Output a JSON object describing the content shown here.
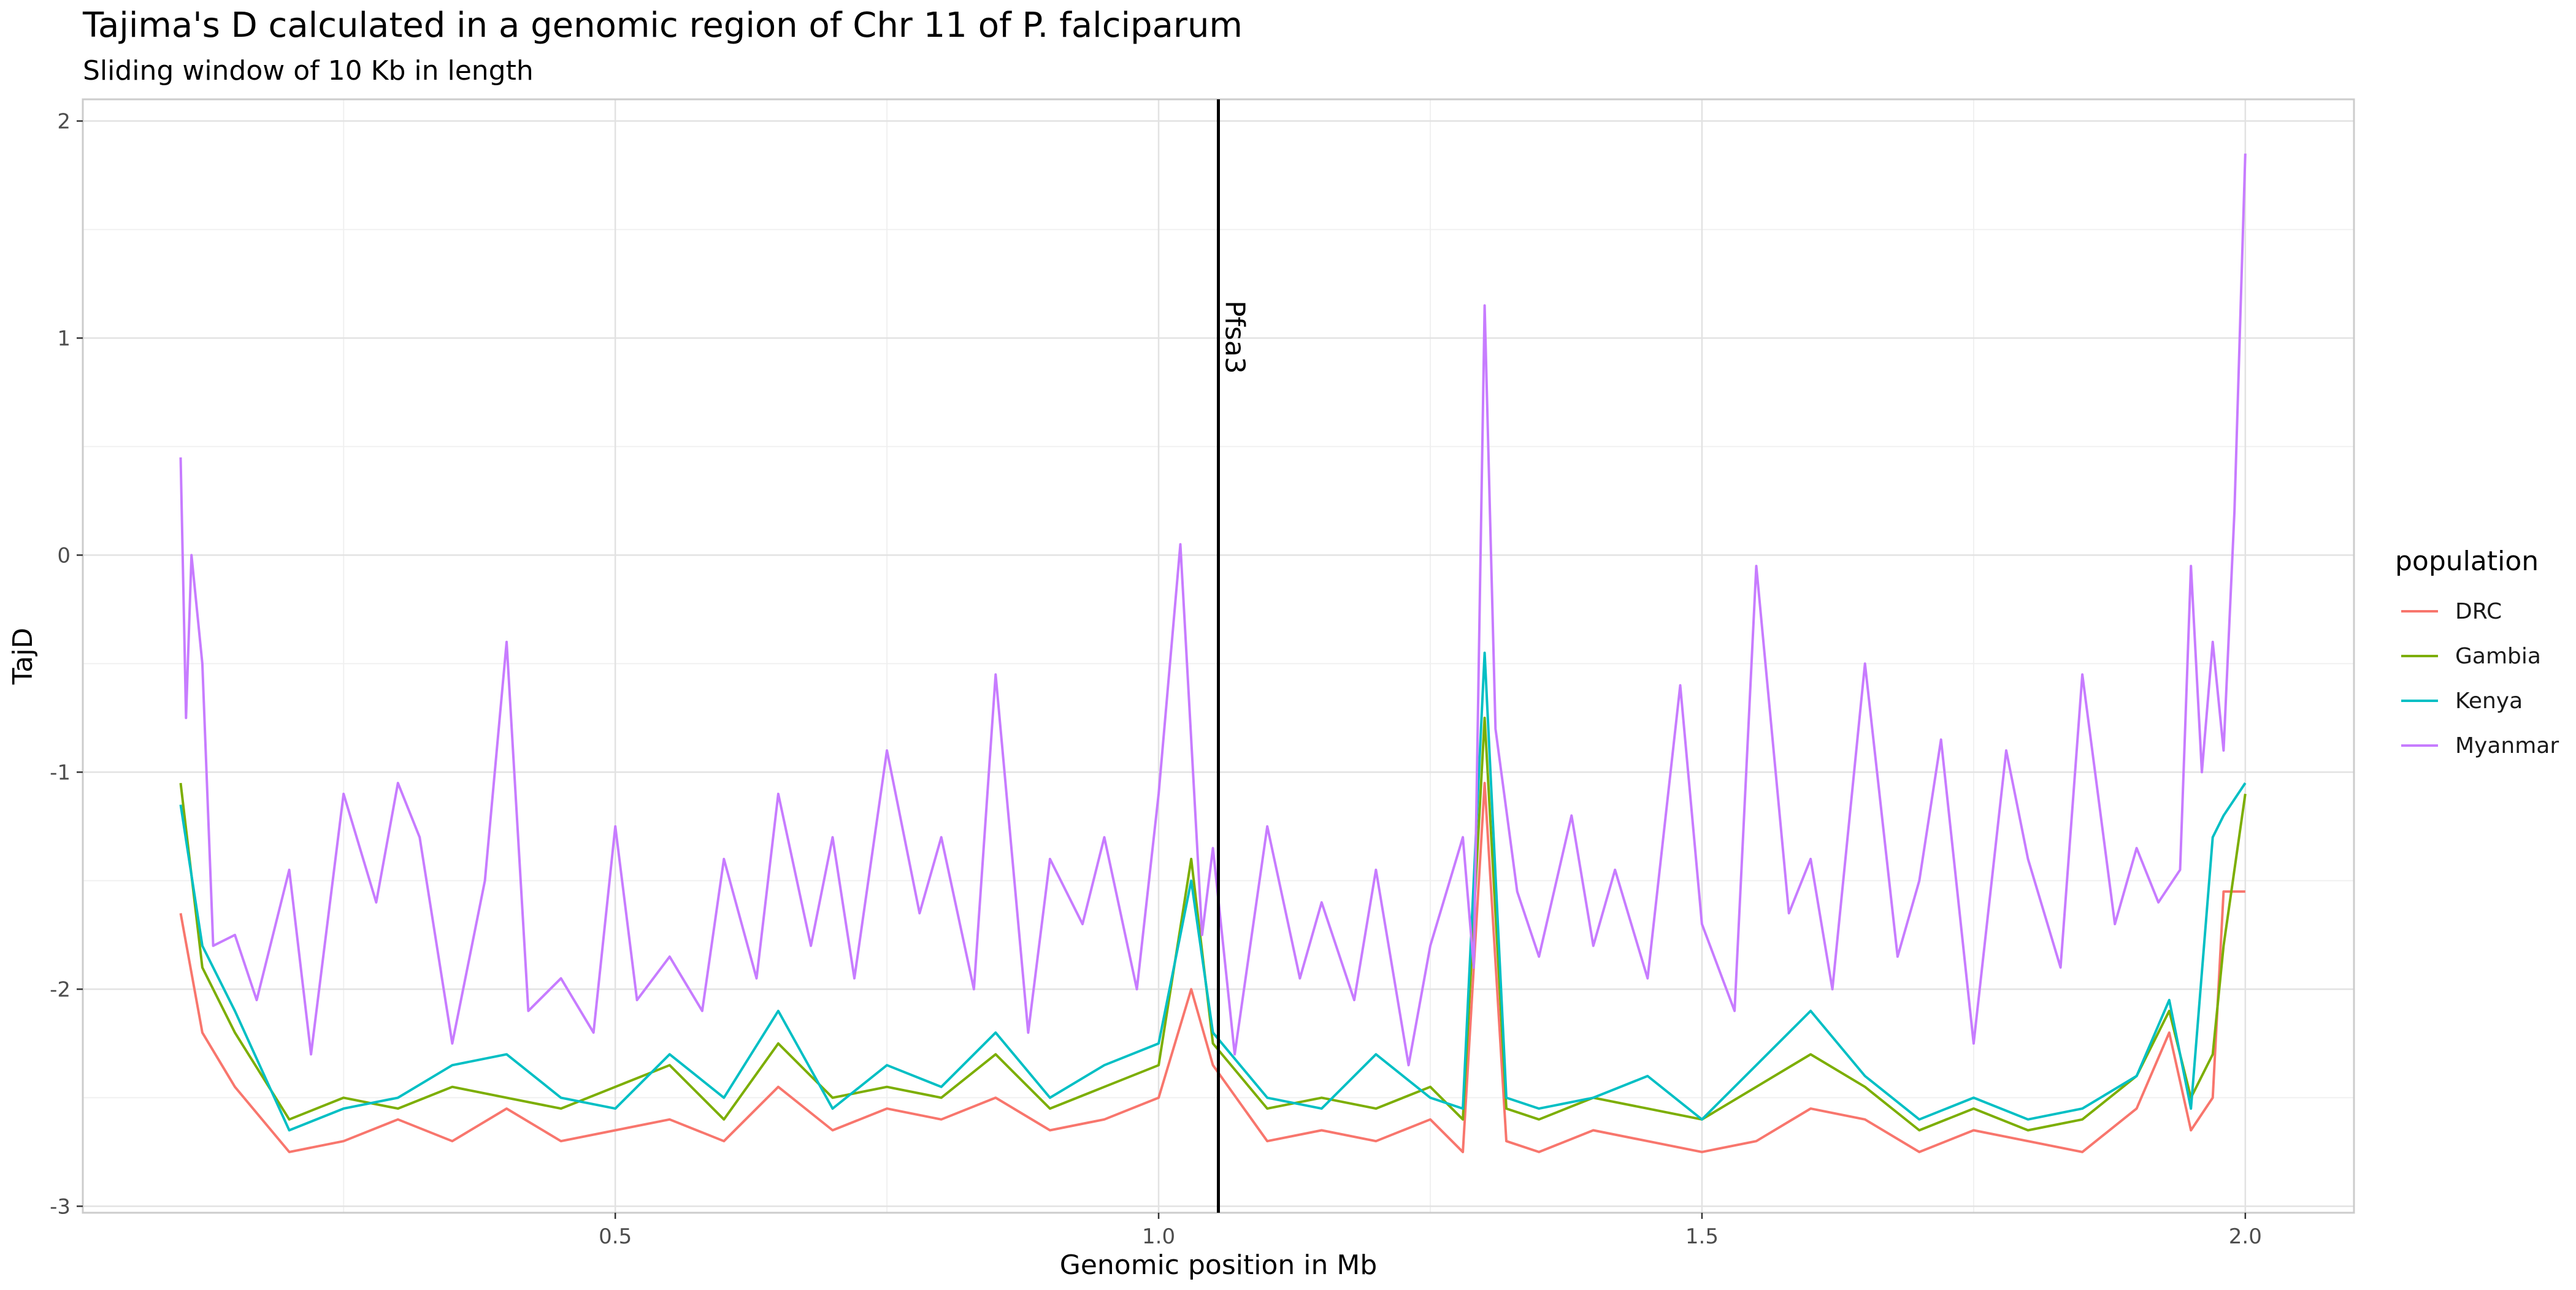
{
  "chart_data": {
    "type": "line",
    "title": "Tajima's D calculated in a genomic region of Chr 11 of P. falciparum",
    "subtitle": "Sliding window of 10 Kb in length",
    "xlabel": "Genomic position in Mb",
    "ylabel": "TajD",
    "xlim": [
      0.01,
      2.1
    ],
    "ylim": [
      -3.03,
      2.1
    ],
    "x_ticks": [
      0.5,
      1.0,
      1.5,
      2.0
    ],
    "x_tick_labels": [
      "0.5",
      "1.0",
      "1.5",
      "2.0"
    ],
    "y_ticks": [
      2,
      1,
      0,
      -1,
      -2,
      -3
    ],
    "y_tick_labels": [
      "2",
      "1",
      "0",
      "-1",
      "-2",
      "-3"
    ],
    "grid": true,
    "legend": {
      "title": "population",
      "position": "right"
    },
    "vline": {
      "x": 1.055,
      "label": "Pfsa3",
      "color": "#000000"
    },
    "series": [
      {
        "name": "DRC",
        "color": "#F8766D",
        "x": [
          0.1,
          0.12,
          0.15,
          0.2,
          0.25,
          0.3,
          0.35,
          0.4,
          0.45,
          0.5,
          0.55,
          0.6,
          0.65,
          0.7,
          0.75,
          0.8,
          0.85,
          0.9,
          0.95,
          1.0,
          1.03,
          1.05,
          1.1,
          1.15,
          1.2,
          1.25,
          1.28,
          1.3,
          1.32,
          1.35,
          1.4,
          1.45,
          1.5,
          1.55,
          1.6,
          1.65,
          1.7,
          1.75,
          1.8,
          1.85,
          1.9,
          1.93,
          1.95,
          1.97,
          1.98,
          2.0
        ],
        "y": [
          -1.65,
          -2.2,
          -2.45,
          -2.75,
          -2.7,
          -2.6,
          -2.7,
          -2.55,
          -2.7,
          -2.65,
          -2.6,
          -2.7,
          -2.45,
          -2.65,
          -2.55,
          -2.6,
          -2.5,
          -2.65,
          -2.6,
          -2.5,
          -2.0,
          -2.35,
          -2.7,
          -2.65,
          -2.7,
          -2.6,
          -2.75,
          -1.05,
          -2.7,
          -2.75,
          -2.65,
          -2.7,
          -2.75,
          -2.7,
          -2.55,
          -2.6,
          -2.75,
          -2.65,
          -2.7,
          -2.75,
          -2.55,
          -2.2,
          -2.65,
          -2.5,
          -1.55,
          -1.55
        ]
      },
      {
        "name": "Gambia",
        "color": "#7CAE00",
        "x": [
          0.1,
          0.12,
          0.15,
          0.2,
          0.25,
          0.3,
          0.35,
          0.4,
          0.45,
          0.5,
          0.55,
          0.6,
          0.65,
          0.7,
          0.75,
          0.8,
          0.85,
          0.9,
          0.95,
          1.0,
          1.03,
          1.05,
          1.1,
          1.15,
          1.2,
          1.25,
          1.28,
          1.3,
          1.32,
          1.35,
          1.4,
          1.45,
          1.5,
          1.55,
          1.6,
          1.65,
          1.7,
          1.75,
          1.8,
          1.85,
          1.9,
          1.93,
          1.95,
          1.97,
          1.98,
          2.0
        ],
        "y": [
          -1.05,
          -1.9,
          -2.2,
          -2.6,
          -2.5,
          -2.55,
          -2.45,
          -2.5,
          -2.55,
          -2.45,
          -2.35,
          -2.6,
          -2.25,
          -2.5,
          -2.45,
          -2.5,
          -2.3,
          -2.55,
          -2.45,
          -2.35,
          -1.4,
          -2.25,
          -2.55,
          -2.5,
          -2.55,
          -2.45,
          -2.6,
          -0.75,
          -2.55,
          -2.6,
          -2.5,
          -2.55,
          -2.6,
          -2.45,
          -2.3,
          -2.45,
          -2.65,
          -2.55,
          -2.65,
          -2.6,
          -2.4,
          -2.1,
          -2.5,
          -2.3,
          -1.8,
          -1.1
        ]
      },
      {
        "name": "Kenya",
        "color": "#00BFC4",
        "x": [
          0.1,
          0.12,
          0.15,
          0.2,
          0.25,
          0.3,
          0.35,
          0.4,
          0.45,
          0.5,
          0.55,
          0.6,
          0.65,
          0.7,
          0.75,
          0.8,
          0.85,
          0.9,
          0.95,
          1.0,
          1.03,
          1.05,
          1.1,
          1.15,
          1.2,
          1.25,
          1.28,
          1.3,
          1.32,
          1.35,
          1.4,
          1.45,
          1.5,
          1.55,
          1.6,
          1.65,
          1.7,
          1.75,
          1.8,
          1.85,
          1.9,
          1.93,
          1.95,
          1.97,
          1.98,
          2.0
        ],
        "y": [
          -1.15,
          -1.8,
          -2.1,
          -2.65,
          -2.55,
          -2.5,
          -2.35,
          -2.3,
          -2.5,
          -2.55,
          -2.3,
          -2.5,
          -2.1,
          -2.55,
          -2.35,
          -2.45,
          -2.2,
          -2.5,
          -2.35,
          -2.25,
          -1.5,
          -2.2,
          -2.5,
          -2.55,
          -2.3,
          -2.5,
          -2.55,
          -0.45,
          -2.5,
          -2.55,
          -2.5,
          -2.4,
          -2.6,
          -2.35,
          -2.1,
          -2.4,
          -2.6,
          -2.5,
          -2.6,
          -2.55,
          -2.4,
          -2.05,
          -2.55,
          -1.3,
          -1.2,
          -1.05
        ]
      },
      {
        "name": "Myanmar",
        "color": "#C77CFF",
        "x": [
          0.1,
          0.105,
          0.11,
          0.12,
          0.13,
          0.15,
          0.17,
          0.2,
          0.22,
          0.25,
          0.28,
          0.3,
          0.32,
          0.35,
          0.38,
          0.4,
          0.42,
          0.45,
          0.48,
          0.5,
          0.52,
          0.55,
          0.58,
          0.6,
          0.63,
          0.65,
          0.68,
          0.7,
          0.72,
          0.75,
          0.78,
          0.8,
          0.83,
          0.85,
          0.88,
          0.9,
          0.93,
          0.95,
          0.98,
          1.0,
          1.02,
          1.04,
          1.05,
          1.07,
          1.1,
          1.13,
          1.15,
          1.18,
          1.2,
          1.23,
          1.25,
          1.28,
          1.29,
          1.3,
          1.31,
          1.33,
          1.35,
          1.38,
          1.4,
          1.42,
          1.45,
          1.48,
          1.5,
          1.53,
          1.55,
          1.58,
          1.6,
          1.62,
          1.65,
          1.68,
          1.7,
          1.72,
          1.75,
          1.78,
          1.8,
          1.83,
          1.85,
          1.88,
          1.9,
          1.92,
          1.94,
          1.95,
          1.96,
          1.97,
          1.98,
          1.99,
          2.0
        ],
        "y": [
          0.45,
          -0.75,
          0.0,
          -0.5,
          -1.8,
          -1.75,
          -2.05,
          -1.45,
          -2.3,
          -1.1,
          -1.6,
          -1.05,
          -1.3,
          -2.25,
          -1.5,
          -0.4,
          -2.1,
          -1.95,
          -2.2,
          -1.25,
          -2.05,
          -1.85,
          -2.1,
          -1.4,
          -1.95,
          -1.1,
          -1.8,
          -1.3,
          -1.95,
          -0.9,
          -1.65,
          -1.3,
          -2.0,
          -0.55,
          -2.2,
          -1.4,
          -1.7,
          -1.3,
          -2.0,
          -1.1,
          0.05,
          -1.75,
          -1.35,
          -2.3,
          -1.25,
          -1.95,
          -1.6,
          -2.05,
          -1.45,
          -2.35,
          -1.8,
          -1.3,
          -1.9,
          1.15,
          -0.8,
          -1.55,
          -1.85,
          -1.2,
          -1.8,
          -1.45,
          -1.95,
          -0.6,
          -1.7,
          -2.1,
          -0.05,
          -1.65,
          -1.4,
          -2.0,
          -0.5,
          -1.85,
          -1.5,
          -0.85,
          -2.25,
          -0.9,
          -1.4,
          -1.9,
          -0.55,
          -1.7,
          -1.35,
          -1.6,
          -1.45,
          -0.05,
          -1.0,
          -0.4,
          -0.9,
          0.2,
          1.85
        ]
      }
    ]
  }
}
